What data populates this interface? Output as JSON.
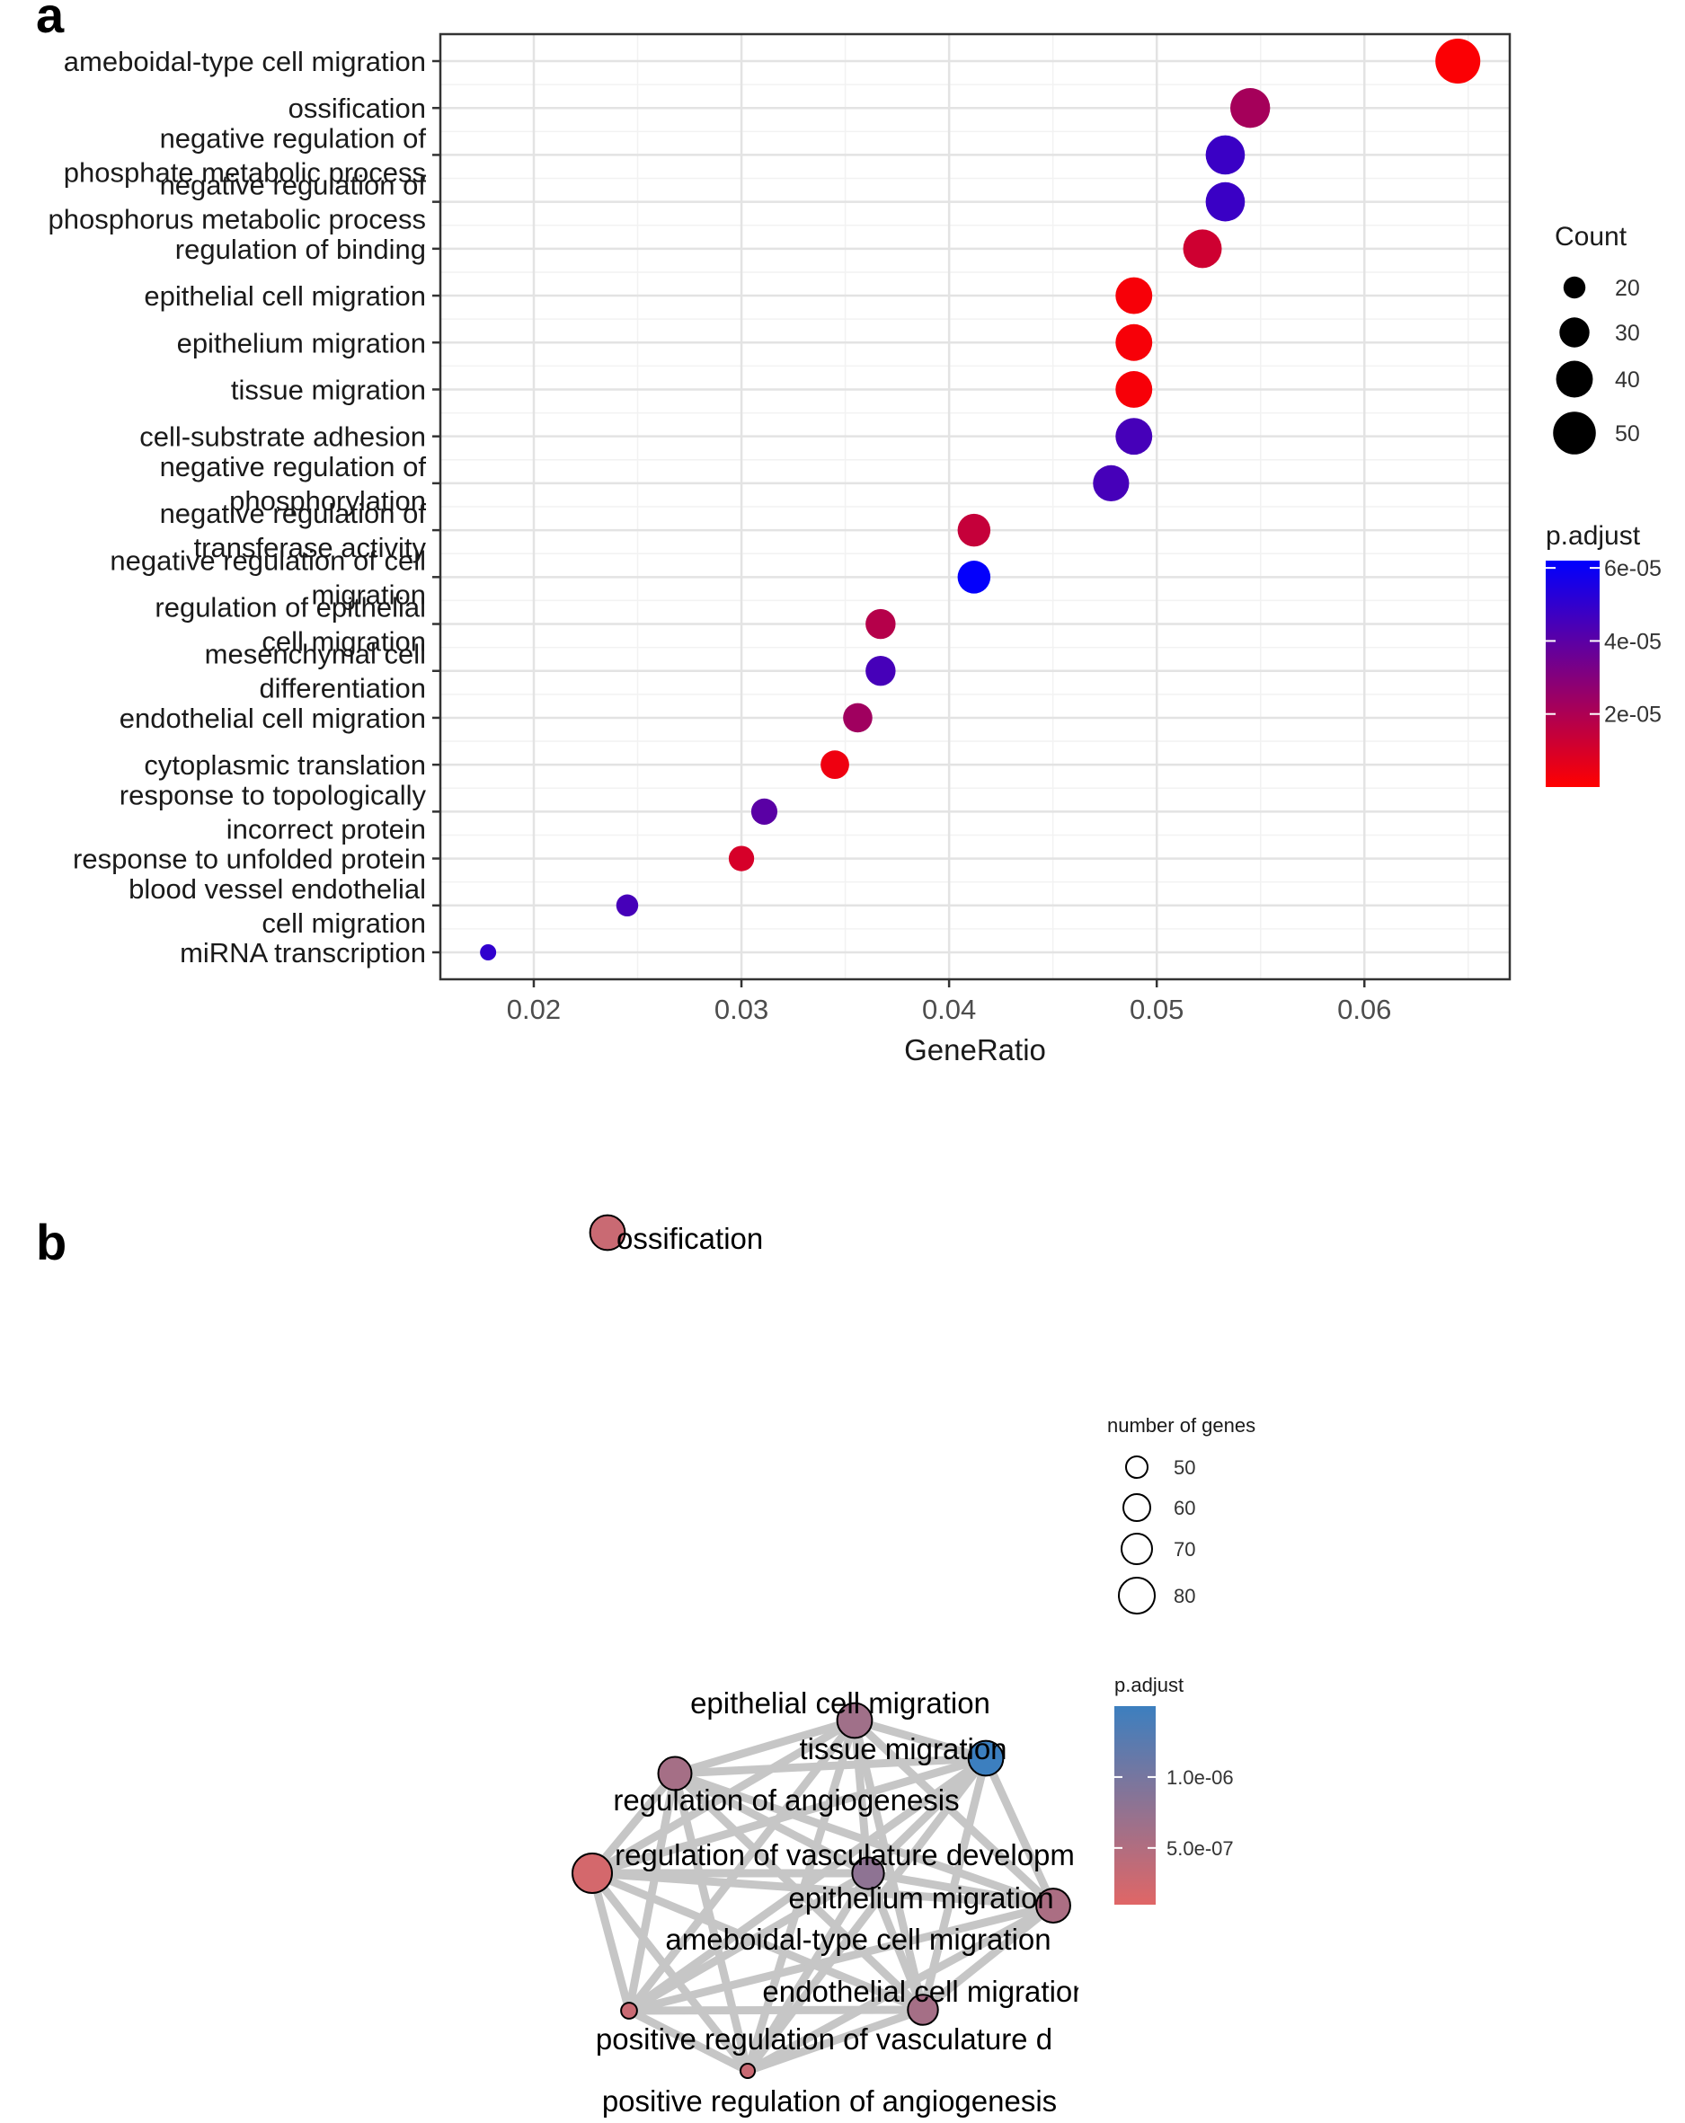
{
  "panels": {
    "a": "a",
    "b": "b"
  },
  "chart_data": [
    {
      "type": "scatter",
      "xlabel": "GeneRatio",
      "xlim": [
        0.0155,
        0.067
      ],
      "xticks": [
        "0.02",
        "0.03",
        "0.04",
        "0.05",
        "0.06"
      ],
      "xtick_values": [
        0.02,
        0.03,
        0.04,
        0.05,
        0.06
      ],
      "grid": true,
      "size_legend": {
        "title": "Count",
        "values": [
          20,
          30,
          40,
          50
        ]
      },
      "color_legend": {
        "title": "p.adjust",
        "ticks": [
          "6e-05",
          "4e-05",
          "2e-05"
        ],
        "tick_values": [
          6e-05,
          4e-05,
          2e-05
        ],
        "range": [
          0,
          6.2e-05
        ],
        "low_color": "#ff0000",
        "high_color": "#0000ff"
      },
      "legend_position": "right",
      "terms": [
        {
          "label": [
            "ameboidal-type cell migration"
          ],
          "gene_ratio": 0.0645,
          "count": 54,
          "p_adjust": 1e-06
        },
        {
          "label": [
            "ossification"
          ],
          "gene_ratio": 0.0545,
          "count": 45,
          "p_adjust": 2.2e-05
        },
        {
          "label": [
            "negative regulation of",
            "phosphate metabolic process"
          ],
          "gene_ratio": 0.0533,
          "count": 44,
          "p_adjust": 4.8e-05
        },
        {
          "label": [
            "negative regulation of",
            "phosphorus metabolic process"
          ],
          "gene_ratio": 0.0533,
          "count": 44,
          "p_adjust": 4.8e-05
        },
        {
          "label": [
            "regulation of binding"
          ],
          "gene_ratio": 0.0522,
          "count": 43,
          "p_adjust": 1.2e-05
        },
        {
          "label": [
            "epithelial cell migration"
          ],
          "gene_ratio": 0.0489,
          "count": 40,
          "p_adjust": 2e-06
        },
        {
          "label": [
            "epithelium migration"
          ],
          "gene_ratio": 0.0489,
          "count": 40,
          "p_adjust": 2e-06
        },
        {
          "label": [
            "tissue migration"
          ],
          "gene_ratio": 0.0489,
          "count": 40,
          "p_adjust": 2e-06
        },
        {
          "label": [
            "cell-substrate adhesion"
          ],
          "gene_ratio": 0.0489,
          "count": 40,
          "p_adjust": 4.5e-05
        },
        {
          "label": [
            "negative regulation of",
            "phosphorylation"
          ],
          "gene_ratio": 0.0478,
          "count": 39,
          "p_adjust": 4.5e-05
        },
        {
          "label": [
            "negative regulation of",
            "transferase activity"
          ],
          "gene_ratio": 0.0412,
          "count": 34,
          "p_adjust": 1.4e-05
        },
        {
          "label": [
            "negative regulation of cell",
            "migration"
          ],
          "gene_ratio": 0.0412,
          "count": 34,
          "p_adjust": 6.1e-05
        },
        {
          "label": [
            "regulation of epithelial",
            "cell migration"
          ],
          "gene_ratio": 0.0367,
          "count": 30,
          "p_adjust": 1.8e-05
        },
        {
          "label": [
            "mesenchymal cell",
            "differentiation"
          ],
          "gene_ratio": 0.0367,
          "count": 30,
          "p_adjust": 4.5e-05
        },
        {
          "label": [
            "endothelial cell migration"
          ],
          "gene_ratio": 0.0356,
          "count": 29,
          "p_adjust": 2.3e-05
        },
        {
          "label": [
            "cytoplasmic translation"
          ],
          "gene_ratio": 0.0345,
          "count": 28,
          "p_adjust": 4e-06
        },
        {
          "label": [
            "response to topologically",
            "incorrect protein"
          ],
          "gene_ratio": 0.0311,
          "count": 25,
          "p_adjust": 4e-05
        },
        {
          "label": [
            "response to unfolded protein"
          ],
          "gene_ratio": 0.03,
          "count": 24,
          "p_adjust": 1e-05
        },
        {
          "label": [
            "blood vessel endothelial",
            "cell migration"
          ],
          "gene_ratio": 0.0245,
          "count": 20,
          "p_adjust": 4.5e-05
        },
        {
          "label": [
            "miRNA transcription"
          ],
          "gene_ratio": 0.0178,
          "count": 14,
          "p_adjust": 5e-05
        }
      ]
    },
    {
      "type": "network",
      "size_legend": {
        "title": "number of genes",
        "values": [
          50,
          60,
          70,
          80
        ]
      },
      "color_legend": {
        "title": "p.adjust",
        "ticks": [
          "1.0e-06",
          "5.0e-07"
        ],
        "tick_values": [
          1e-06,
          5e-07
        ],
        "range": [
          1e-07,
          1.5e-06
        ],
        "low_color": "#e06666",
        "high_color": "#3c7fbf"
      },
      "nodes": [
        {
          "id": "ossification",
          "label": "ossification",
          "genes": 74,
          "p_adjust": 3e-07
        },
        {
          "id": "epithelial",
          "label": "epithelial cell migration",
          "genes": 74,
          "p_adjust": 6.5e-07
        },
        {
          "id": "tissue",
          "label": "tissue migration",
          "genes": 74,
          "p_adjust": 1.5e-06
        },
        {
          "id": "reg_ang",
          "label": "regulation of angiogenesis",
          "genes": 72,
          "p_adjust": 6e-07
        },
        {
          "id": "reg_vasc",
          "label": "regulation of vasculature developm",
          "genes": 70,
          "p_adjust": 8e-07
        },
        {
          "id": "epithelium",
          "label": "epithelium migration",
          "genes": 73,
          "p_adjust": 5.5e-07
        },
        {
          "id": "ameboidal",
          "label": "ameboidal-type cell migration",
          "genes": 80,
          "p_adjust": 2e-07
        },
        {
          "id": "endothelial",
          "label": "endothelial cell migration",
          "genes": 68,
          "p_adjust": 6e-07
        },
        {
          "id": "pos_vasc",
          "label": "positive regulation of vasculature d",
          "genes": 50,
          "p_adjust": 3e-07
        },
        {
          "id": "pos_ang",
          "label": "positive regulation of angiogenesis",
          "genes": 48,
          "p_adjust": 3e-07
        }
      ],
      "edges": [
        [
          "epithelial",
          "tissue"
        ],
        [
          "epithelial",
          "reg_ang"
        ],
        [
          "epithelial",
          "reg_vasc"
        ],
        [
          "epithelial",
          "epithelium"
        ],
        [
          "epithelial",
          "ameboidal"
        ],
        [
          "epithelial",
          "endothelial"
        ],
        [
          "epithelial",
          "pos_vasc"
        ],
        [
          "epithelial",
          "pos_ang"
        ],
        [
          "tissue",
          "reg_ang"
        ],
        [
          "tissue",
          "reg_vasc"
        ],
        [
          "tissue",
          "epithelium"
        ],
        [
          "tissue",
          "ameboidal"
        ],
        [
          "tissue",
          "endothelial"
        ],
        [
          "tissue",
          "pos_vasc"
        ],
        [
          "tissue",
          "pos_ang"
        ],
        [
          "reg_ang",
          "reg_vasc"
        ],
        [
          "reg_ang",
          "epithelium"
        ],
        [
          "reg_ang",
          "ameboidal"
        ],
        [
          "reg_ang",
          "endothelial"
        ],
        [
          "reg_ang",
          "pos_vasc"
        ],
        [
          "reg_ang",
          "pos_ang"
        ],
        [
          "reg_vasc",
          "epithelium"
        ],
        [
          "reg_vasc",
          "ameboidal"
        ],
        [
          "reg_vasc",
          "endothelial"
        ],
        [
          "reg_vasc",
          "pos_vasc"
        ],
        [
          "reg_vasc",
          "pos_ang"
        ],
        [
          "epithelium",
          "ameboidal"
        ],
        [
          "epithelium",
          "endothelial"
        ],
        [
          "epithelium",
          "pos_vasc"
        ],
        [
          "epithelium",
          "pos_ang"
        ],
        [
          "ameboidal",
          "endothelial"
        ],
        [
          "ameboidal",
          "pos_vasc"
        ],
        [
          "ameboidal",
          "pos_ang"
        ],
        [
          "endothelial",
          "pos_vasc"
        ],
        [
          "endothelial",
          "pos_ang"
        ],
        [
          "pos_vasc",
          "pos_ang"
        ]
      ]
    }
  ]
}
